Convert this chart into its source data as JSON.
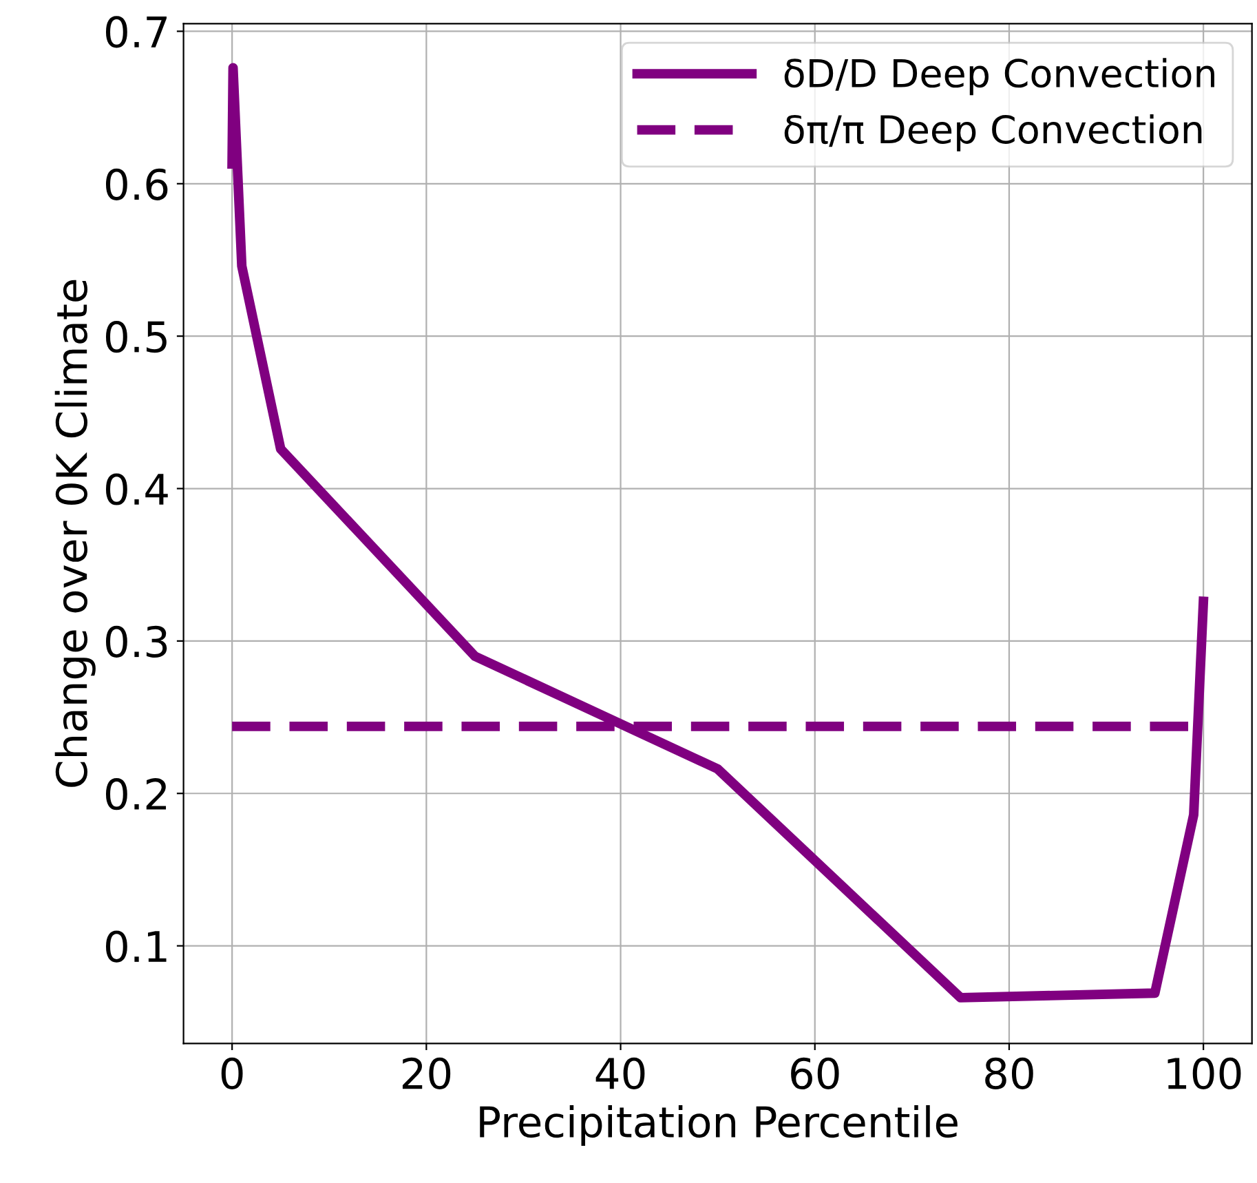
{
  "chart_data": {
    "type": "line",
    "xlabel": "Precipitation Percentile",
    "ylabel": "Change over 0K Climate",
    "xlim": [
      -5,
      105
    ],
    "xticks": [
      0,
      20,
      40,
      60,
      80,
      100
    ],
    "ylim": [
      0.036,
      0.705
    ],
    "yticks": [
      0.1,
      0.2,
      0.3,
      0.4,
      0.5,
      0.6,
      0.7
    ],
    "grid": true,
    "legend": "top right",
    "series": [
      {
        "name": "δD/D Deep Convection",
        "color": "#800080",
        "line_style": "solid",
        "x": [
          0,
          0.1,
          1,
          5,
          25,
          50,
          75,
          95,
          99,
          100
        ],
        "values": [
          0.613,
          0.676,
          0.546,
          0.426,
          0.29,
          0.216,
          0.066,
          0.069,
          0.186,
          0.326
        ]
      },
      {
        "name": "δπ/π Deep Convection",
        "color": "#800080",
        "line_style": "dashed",
        "x": [
          0,
          100
        ],
        "values": [
          0.244,
          0.244
        ]
      }
    ]
  }
}
